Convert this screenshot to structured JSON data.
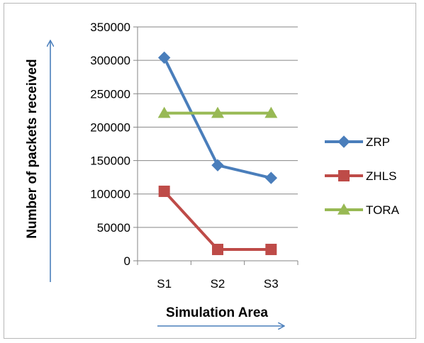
{
  "chart_data": {
    "type": "line",
    "xlabel": "Simulation Area",
    "ylabel": "Number of packets received",
    "categories": [
      "S1",
      "S2",
      "S3"
    ],
    "ylim": [
      0,
      350000
    ],
    "yticks": [
      0,
      50000,
      100000,
      150000,
      200000,
      250000,
      300000,
      350000
    ],
    "grid": true,
    "legend_position": "right",
    "series": [
      {
        "name": "ZRP",
        "values": [
          304000,
          143000,
          124000
        ],
        "color": "#4a7ebb",
        "marker": "diamond"
      },
      {
        "name": "ZHLS",
        "values": [
          104000,
          17000,
          17000
        ],
        "color": "#be4b48",
        "marker": "square"
      },
      {
        "name": "TORA",
        "values": [
          221000,
          221000,
          221000
        ],
        "color": "#98b954",
        "marker": "triangle"
      }
    ]
  }
}
